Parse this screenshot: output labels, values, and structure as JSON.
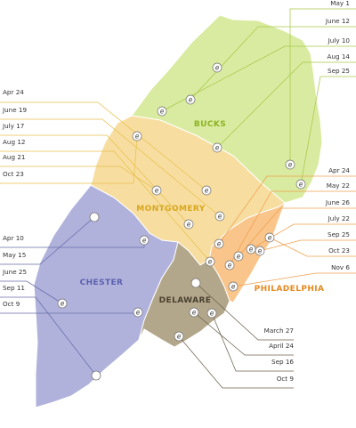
{
  "counties": {
    "bucks": {
      "label": "BUCKS",
      "fill": "#d9eba0",
      "text": "#8cb324"
    },
    "montgomery": {
      "label": "MONTGOMERY",
      "fill": "#f7dea0",
      "text": "#d8a720"
    },
    "chester": {
      "label": "CHESTER",
      "fill": "#b0b2dc",
      "text": "#5c60ad"
    },
    "delaware": {
      "label": "DELAWARE",
      "fill": "#b3a78b",
      "text": "#4a4030"
    },
    "philadelphia": {
      "label": "PHILADELPHIA",
      "fill": "#f9c58a",
      "text": "#e58a20"
    }
  },
  "leader_colors": {
    "bucks": "#a8c84a",
    "montgomery": "#e8c050",
    "chester": "#6a6ea8",
    "delaware": "#6d6350",
    "philadelphia": "#f0a050"
  },
  "marker_glyph": "e",
  "dates": {
    "bucks": [
      "May 1",
      "June 12",
      "July 10",
      "Aug 14",
      "Sep 25"
    ],
    "montgomery": [
      "Apr 24",
      "June 19",
      "July 17",
      "Aug 12",
      "Aug 21",
      "Oct 23"
    ],
    "philadelphia": [
      "Apr 24",
      "May 22",
      "June 26",
      "July 22",
      "Sep 25",
      "Oct 23",
      "Nov 6"
    ],
    "chester": [
      "Apr 10",
      "May 15",
      "June 25",
      "Sep 11",
      "Oct 9"
    ],
    "delaware": [
      "March 27",
      "April 24",
      "Sep 16",
      "Oct 9"
    ]
  }
}
